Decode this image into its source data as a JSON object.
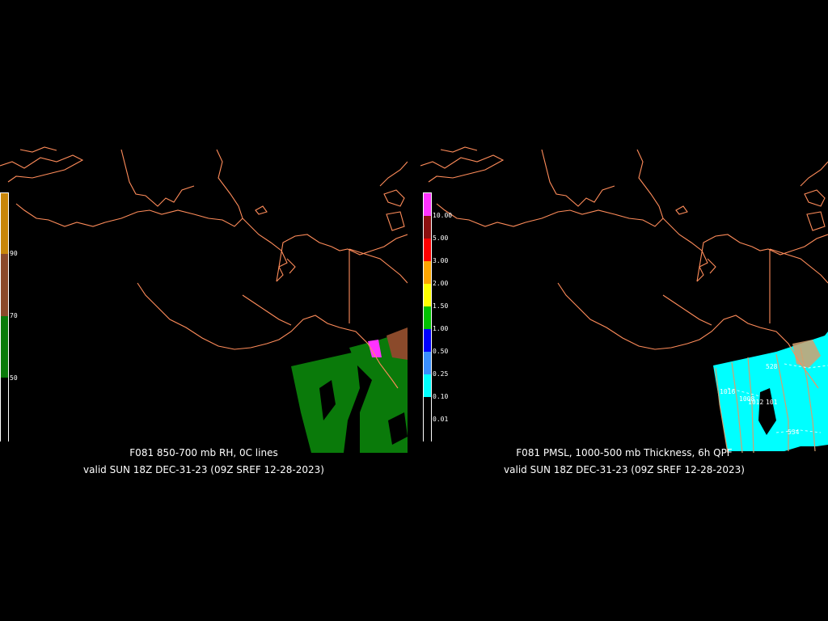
{
  "panels": [
    {
      "title": "F081 850-700 mb RH, 0C lines",
      "valid": "valid SUN 18Z DEC-31-23 (09Z SREF 12-28-2023)",
      "legend": {
        "labels": [
          "90",
          "70",
          "50"
        ],
        "colors": [
          "#c8860a",
          "#8b4a2b",
          "#0a7a0a",
          "#000000"
        ]
      }
    },
    {
      "title": "F081 PMSL, 1000-500 mb Thickness, 6h QPF",
      "valid": "valid SUN 18Z DEC-31-23 (09Z SREF 12-28-2023)",
      "legend": {
        "labels": [
          "10.00",
          "5.00",
          "3.00",
          "2.00",
          "1.50",
          "1.00",
          "0.50",
          "0.25",
          "0.10",
          "0.01"
        ],
        "colors": [
          "#ff33ff",
          "#8b1010",
          "#ff0000",
          "#ffa500",
          "#ffff00",
          "#00c000",
          "#0000ff",
          "#3a8fff",
          "#00ffff",
          "#000000"
        ]
      },
      "contour_labels": [
        "528",
        "1016",
        "1008",
        "1012",
        "101",
        "534"
      ]
    }
  ],
  "colors": {
    "coastline": "#ff8c5a",
    "background": "#000000",
    "thickness_lines": "#d2a070",
    "isobars": "#ffffff"
  }
}
